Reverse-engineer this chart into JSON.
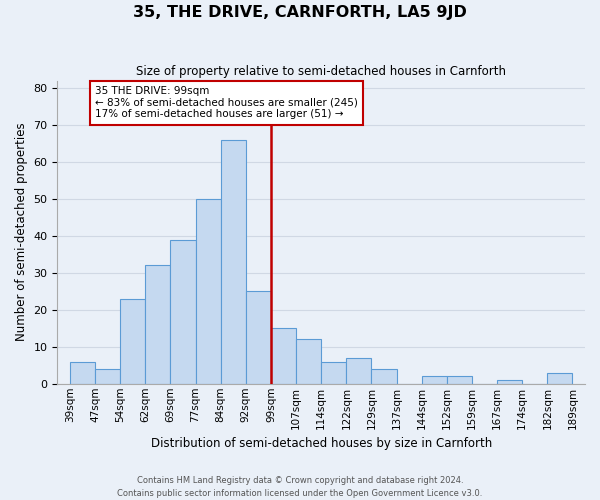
{
  "title": "35, THE DRIVE, CARNFORTH, LA5 9JD",
  "subtitle": "Size of property relative to semi-detached houses in Carnforth",
  "xlabel": "Distribution of semi-detached houses by size in Carnforth",
  "ylabel": "Number of semi-detached properties",
  "footer_line1": "Contains HM Land Registry data © Crown copyright and database right 2024.",
  "footer_line2": "Contains public sector information licensed under the Open Government Licence v3.0.",
  "bin_labels": [
    "39sqm",
    "47sqm",
    "54sqm",
    "62sqm",
    "69sqm",
    "77sqm",
    "84sqm",
    "92sqm",
    "99sqm",
    "107sqm",
    "114sqm",
    "122sqm",
    "129sqm",
    "137sqm",
    "144sqm",
    "152sqm",
    "159sqm",
    "167sqm",
    "174sqm",
    "182sqm",
    "189sqm"
  ],
  "bar_heights": [
    6,
    4,
    23,
    32,
    39,
    50,
    66,
    25,
    15,
    12,
    6,
    7,
    4,
    0,
    2,
    2,
    0,
    1,
    0,
    3
  ],
  "bar_color": "#c5d9f0",
  "bar_edge_color": "#5b9bd5",
  "property_line_idx": 8,
  "annotation_title": "35 THE DRIVE: 99sqm",
  "annotation_line1": "← 83% of semi-detached houses are smaller (245)",
  "annotation_line2": "17% of semi-detached houses are larger (51) →",
  "annotation_box_color": "white",
  "annotation_box_edge_color": "#c00000",
  "vline_color": "#c00000",
  "ylim": [
    0,
    82
  ],
  "yticks": [
    0,
    10,
    20,
    30,
    40,
    50,
    60,
    70,
    80
  ],
  "grid_color": "#d0d8e4",
  "background_color": "#eaf0f8"
}
